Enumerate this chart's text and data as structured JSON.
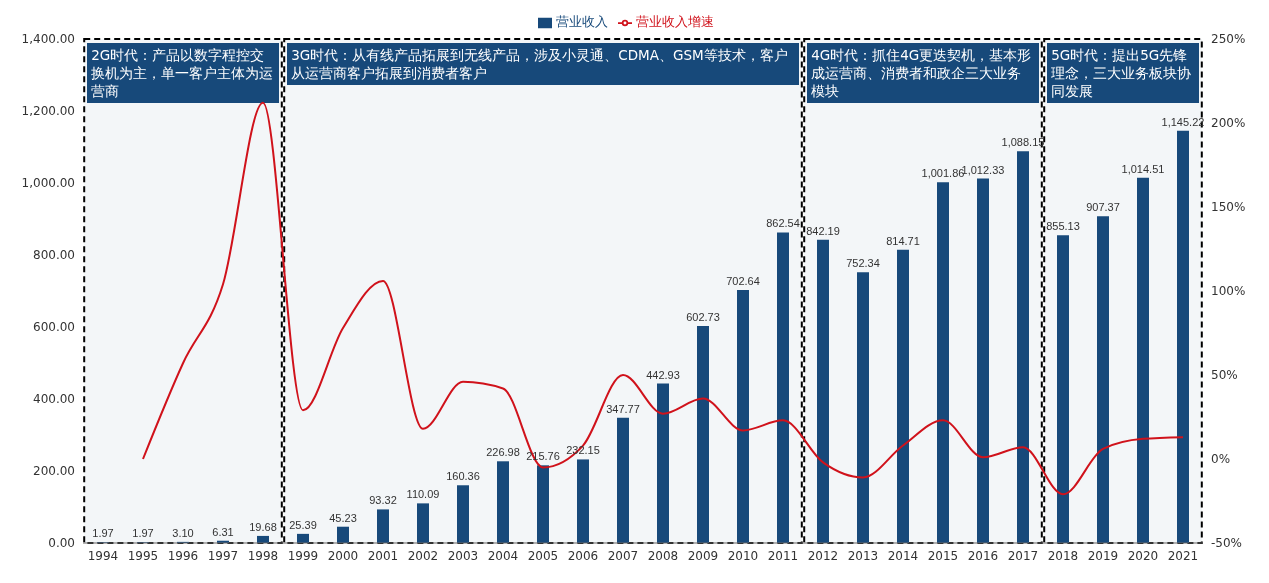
{
  "chart_data": {
    "type": "bar",
    "categories": [
      "1994",
      "1995",
      "1996",
      "1997",
      "1998",
      "1999",
      "2000",
      "2001",
      "2002",
      "2003",
      "2004",
      "2005",
      "2006",
      "2007",
      "2008",
      "2009",
      "2010",
      "2011",
      "2012",
      "2013",
      "2014",
      "2015",
      "2016",
      "2017",
      "2018",
      "2019",
      "2020",
      "2021"
    ],
    "series": [
      {
        "name": "营业收入",
        "color": "#17497a",
        "values": [
          1.97,
          1.97,
          3.1,
          6.31,
          19.68,
          25.39,
          45.23,
          93.32,
          110.09,
          160.36,
          226.98,
          215.76,
          232.15,
          347.77,
          442.93,
          602.73,
          702.64,
          862.54,
          842.19,
          752.34,
          814.71,
          1001.86,
          1012.33,
          1088.15,
          855.13,
          907.37,
          1014.51,
          1145.22
        ],
        "value_labels": [
          "1.97",
          "1.97",
          "3.10",
          "6.31",
          "19.68",
          "25.39",
          "45.23",
          "93.32",
          "110.09",
          "160.36",
          "226.98",
          "215.76",
          "232.15",
          "347.77",
          "442.93",
          "602.73",
          "702.64",
          "862.54",
          "842.19",
          "752.34",
          "814.71",
          "1,001.86",
          "1,012.33",
          "1,088.15",
          "855.13",
          "907.37",
          "1,014.51",
          "1,145.22"
        ]
      },
      {
        "name": "营业收入增速",
        "type": "line",
        "axis": "y2",
        "color": "#d0121b",
        "values": [
          null,
          0,
          57,
          104,
          212,
          29,
          78,
          106,
          18,
          46,
          42,
          -5,
          8,
          50,
          27,
          36,
          17,
          23,
          -2,
          -11,
          8,
          23,
          1,
          7,
          -21,
          6,
          12,
          13
        ]
      }
    ],
    "ylim": [
      0,
      1400
    ],
    "yticks": [
      {
        "value": 0,
        "label": "0.00"
      },
      {
        "value": 200,
        "label": "200.00"
      },
      {
        "value": 400,
        "label": "400.00"
      },
      {
        "value": 600,
        "label": "600.00"
      },
      {
        "value": 800,
        "label": "800.00"
      },
      {
        "value": 1000,
        "label": "1,000.00"
      },
      {
        "value": 1200,
        "label": "1,200.00"
      },
      {
        "value": 1400,
        "label": "1,400.00"
      }
    ],
    "y2lim": [
      -50,
      250
    ],
    "y2ticks": [
      {
        "value": -50,
        "label": "-50%"
      },
      {
        "value": 0,
        "label": "0%"
      },
      {
        "value": 50,
        "label": "50%"
      },
      {
        "value": 100,
        "label": "100%"
      },
      {
        "value": 150,
        "label": "150%"
      },
      {
        "value": 200,
        "label": "200%"
      },
      {
        "value": 250,
        "label": "250%"
      }
    ],
    "bands": [
      {
        "axis": "x",
        "from": "1994",
        "to": "1998",
        "label": "2G时代：产品以数字程控交换机为主，单一客户主体为运营商",
        "color": "#17497a"
      },
      {
        "axis": "x",
        "from": "1999",
        "to": "2011",
        "label": "3G时代：从有线产品拓展到无线产品，涉及小灵通、CDMA、GSM等技术，客户从运营商客户拓展到消费者客户",
        "color": "#17497a"
      },
      {
        "axis": "x",
        "from": "2012",
        "to": "2017",
        "label": "4G时代：抓住4G更迭契机，基本形成运营商、消费者和政企三大业务模块",
        "color": "#17497a"
      },
      {
        "axis": "x",
        "from": "2018",
        "to": "2021",
        "label": "5G时代：提出5G先锋理念，三大业务板块协同发展",
        "color": "#17497a"
      }
    ],
    "legend": "top",
    "grid": false,
    "marker": "none",
    "line_style": "solid"
  }
}
